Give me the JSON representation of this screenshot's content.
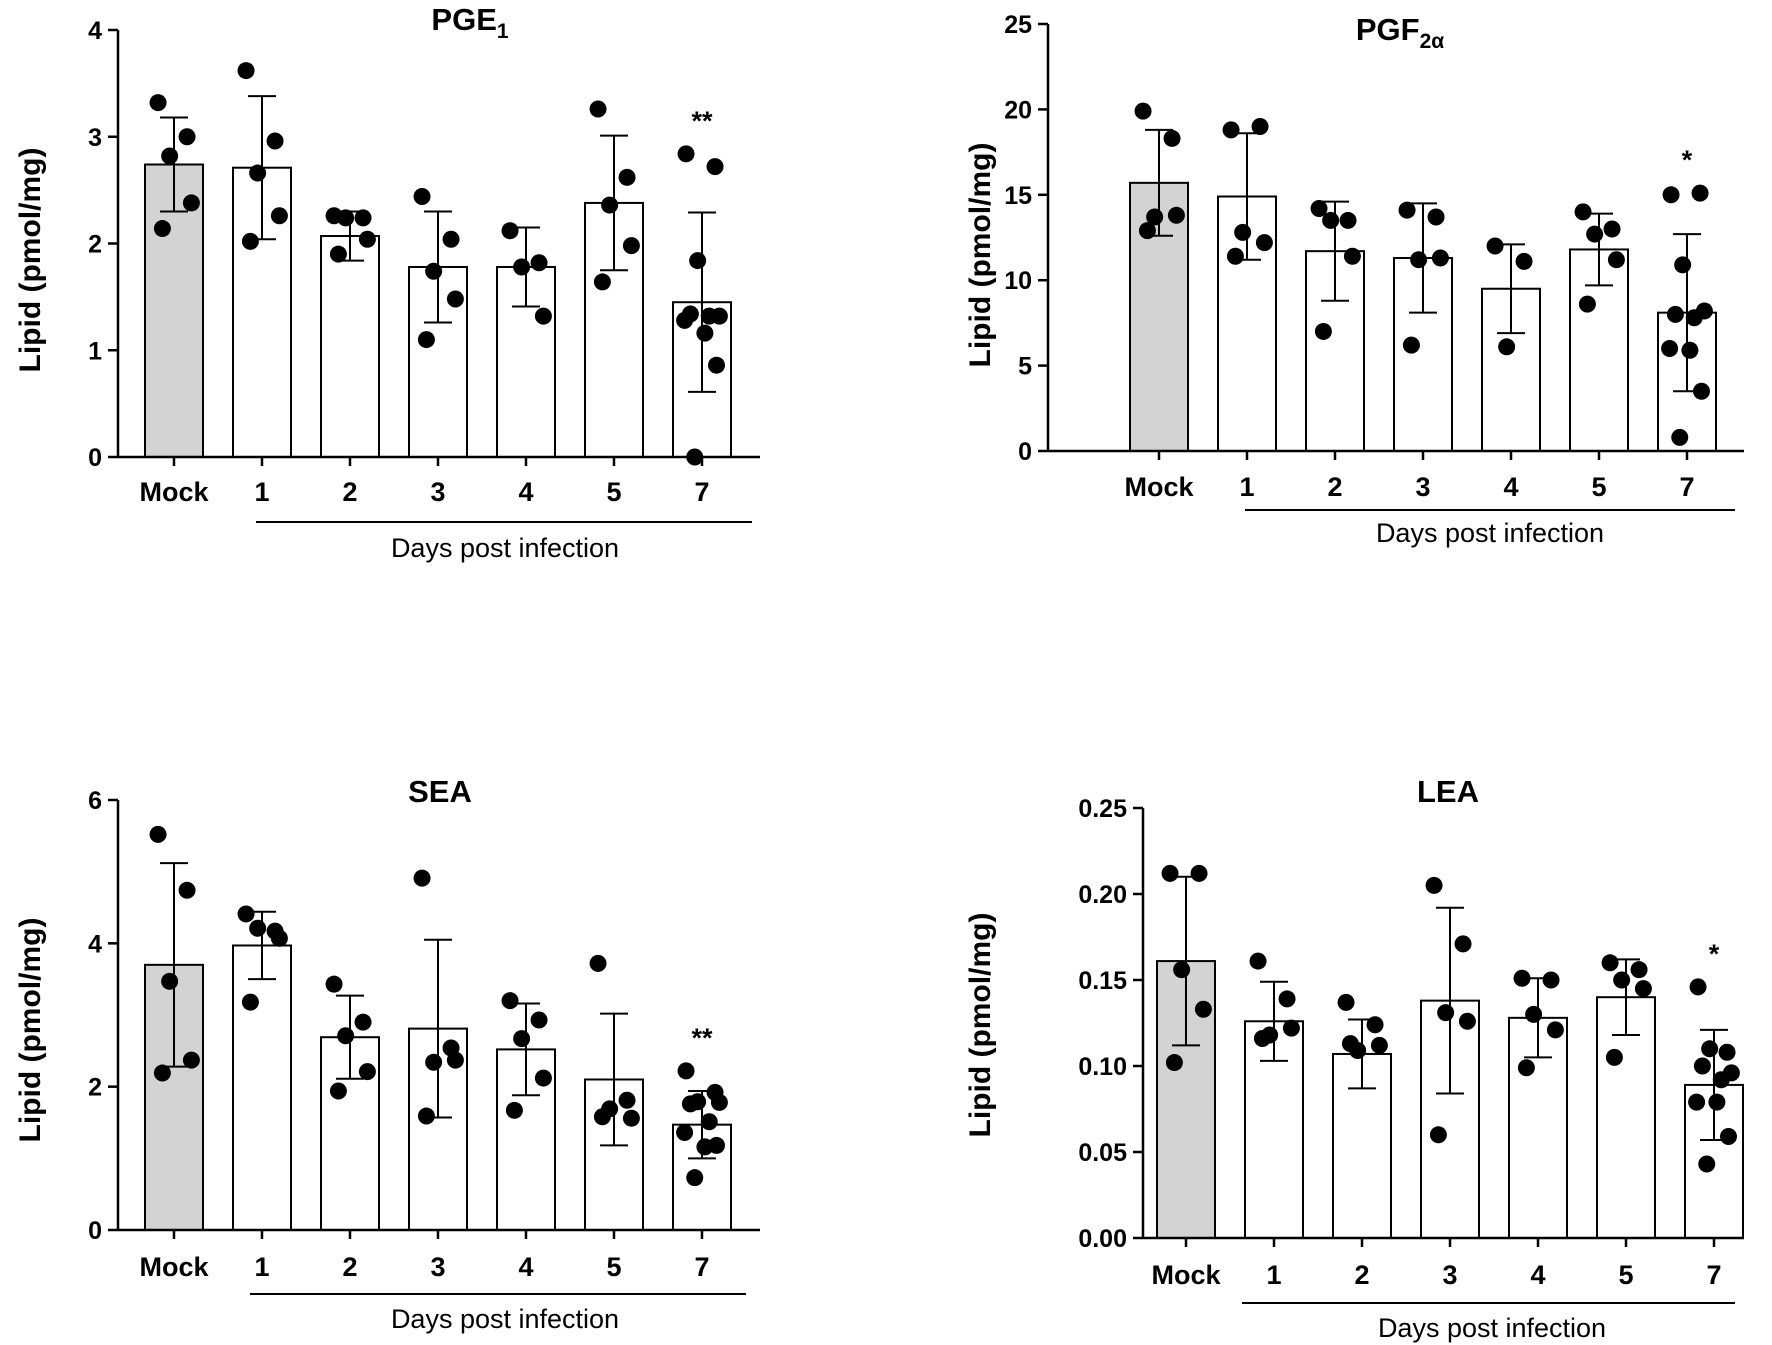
{
  "chart_data": [
    {
      "type": "bar",
      "title": "PGE",
      "title_subscript": "1",
      "ylabel": "Lipid (pmol/mg)",
      "xlabel": "Days post infection",
      "ylim": [
        0,
        4
      ],
      "yticks": [
        0,
        1,
        2,
        3,
        4
      ],
      "ytick_labels": [
        "0",
        "1",
        "2",
        "3",
        "4"
      ],
      "categories": [
        "Mock",
        "1",
        "2",
        "3",
        "4",
        "5",
        "7"
      ],
      "values": [
        2.74,
        2.71,
        2.07,
        1.78,
        1.78,
        2.38,
        1.45
      ],
      "errors": [
        0.44,
        0.67,
        0.23,
        0.52,
        0.37,
        0.63,
        0.84
      ],
      "points": [
        [
          3.32,
          3.0,
          2.82,
          2.38,
          2.14
        ],
        [
          3.62,
          2.96,
          2.66,
          2.26,
          2.02
        ],
        [
          2.26,
          2.24,
          2.24,
          2.04,
          1.9
        ],
        [
          2.44,
          2.04,
          1.74,
          1.48,
          1.1
        ],
        [
          2.12,
          1.82,
          1.78,
          1.32
        ],
        [
          3.26,
          2.62,
          2.36,
          1.98,
          1.64
        ],
        [
          2.84,
          2.72,
          1.84,
          1.32,
          1.34,
          1.32,
          1.28,
          1.16,
          0.86,
          0.0
        ]
      ],
      "bar_colors": [
        "#d3d3d3",
        "#ffffff",
        "#ffffff",
        "#ffffff",
        "#ffffff",
        "#ffffff",
        "#ffffff"
      ],
      "significance": [
        "",
        "",
        "",
        "",
        "",
        "",
        "**"
      ]
    },
    {
      "type": "bar",
      "title": "PGF",
      "title_subscript": "2α",
      "ylabel": "Lipid (pmol/mg)",
      "xlabel": "Days post infection",
      "ylim": [
        0,
        25
      ],
      "yticks": [
        0,
        5,
        10,
        15,
        20,
        25
      ],
      "ytick_labels": [
        "0",
        "5",
        "10",
        "15",
        "20",
        "25"
      ],
      "categories": [
        "Mock",
        "1",
        "2",
        "3",
        "4",
        "5",
        "7"
      ],
      "values": [
        15.7,
        14.9,
        11.7,
        11.3,
        9.5,
        11.8,
        8.1
      ],
      "errors": [
        3.1,
        3.7,
        2.9,
        3.2,
        2.6,
        2.1,
        4.6
      ],
      "points": [
        [
          19.9,
          18.3,
          13.7,
          13.8,
          12.9
        ],
        [
          18.8,
          19.0,
          12.8,
          12.2,
          11.4
        ],
        [
          14.2,
          13.5,
          13.5,
          11.4,
          7.0
        ],
        [
          14.1,
          13.7,
          11.2,
          11.3,
          6.2
        ],
        [
          12.0,
          11.1,
          6.1
        ],
        [
          14.0,
          13.0,
          12.7,
          11.2,
          8.6
        ],
        [
          15.0,
          15.1,
          10.9,
          8.2,
          8.0,
          7.8,
          6.0,
          5.9,
          3.5,
          0.8
        ]
      ],
      "bar_colors": [
        "#d3d3d3",
        "#ffffff",
        "#ffffff",
        "#ffffff",
        "#ffffff",
        "#ffffff",
        "#ffffff"
      ],
      "significance": [
        "",
        "",
        "",
        "",
        "",
        "",
        "*"
      ]
    },
    {
      "type": "bar",
      "title": "SEA",
      "title_subscript": "",
      "ylabel": "Lipid (pmol/mg)",
      "xlabel": "Days post infection",
      "ylim": [
        0,
        6
      ],
      "yticks": [
        0,
        2,
        4,
        6
      ],
      "ytick_labels": [
        "0",
        "2",
        "4",
        "6"
      ],
      "categories": [
        "Mock",
        "1",
        "2",
        "3",
        "4",
        "5",
        "7"
      ],
      "values": [
        3.7,
        3.97,
        2.69,
        2.81,
        2.52,
        2.1,
        1.47
      ],
      "errors": [
        1.42,
        0.47,
        0.58,
        1.24,
        0.64,
        0.92,
        0.47
      ],
      "points": [
        [
          5.52,
          4.74,
          3.47,
          2.37,
          2.19
        ],
        [
          4.41,
          4.17,
          4.21,
          4.07,
          3.18
        ],
        [
          3.43,
          2.9,
          2.71,
          2.21,
          1.94
        ],
        [
          4.91,
          2.54,
          2.34,
          2.37,
          1.59
        ],
        [
          3.2,
          2.93,
          2.67,
          2.12,
          1.67
        ],
        [
          3.72,
          1.81,
          1.69,
          1.56,
          1.58
        ],
        [
          2.22,
          1.92,
          1.79,
          1.78,
          1.76,
          1.51,
          1.36,
          1.16,
          1.18,
          0.73
        ]
      ],
      "bar_colors": [
        "#d3d3d3",
        "#ffffff",
        "#ffffff",
        "#ffffff",
        "#ffffff",
        "#ffffff",
        "#ffffff"
      ],
      "significance": [
        "",
        "",
        "",
        "",
        "",
        "",
        "**"
      ]
    },
    {
      "type": "bar",
      "title": "LEA",
      "title_subscript": "",
      "ylabel": "Lipid (pmol/mg)",
      "xlabel": "Days post infection",
      "ylim": [
        0,
        0.25
      ],
      "yticks": [
        0,
        0.05,
        0.1,
        0.15,
        0.2,
        0.25
      ],
      "ytick_labels": [
        "0.00",
        "0.05",
        "0.10",
        "0.15",
        "0.20",
        "0.25"
      ],
      "categories": [
        "Mock",
        "1",
        "2",
        "3",
        "4",
        "5",
        "7"
      ],
      "values": [
        0.161,
        0.126,
        0.107,
        0.138,
        0.128,
        0.14,
        0.089
      ],
      "errors": [
        0.049,
        0.023,
        0.02,
        0.054,
        0.023,
        0.022,
        0.032
      ],
      "points": [
        [
          0.212,
          0.212,
          0.156,
          0.133,
          0.102
        ],
        [
          0.161,
          0.139,
          0.118,
          0.122,
          0.116
        ],
        [
          0.137,
          0.124,
          0.109,
          0.112,
          0.113
        ],
        [
          0.205,
          0.171,
          0.131,
          0.126,
          0.06
        ],
        [
          0.151,
          0.15,
          0.13,
          0.121,
          0.099
        ],
        [
          0.16,
          0.156,
          0.15,
          0.145,
          0.105
        ],
        [
          0.146,
          0.108,
          0.11,
          0.096,
          0.1,
          0.092,
          0.079,
          0.079,
          0.059,
          0.043
        ]
      ],
      "bar_colors": [
        "#d3d3d3",
        "#ffffff",
        "#ffffff",
        "#ffffff",
        "#ffffff",
        "#ffffff",
        "#ffffff"
      ],
      "significance": [
        "",
        "",
        "",
        "",
        "",
        "",
        "*"
      ]
    }
  ]
}
